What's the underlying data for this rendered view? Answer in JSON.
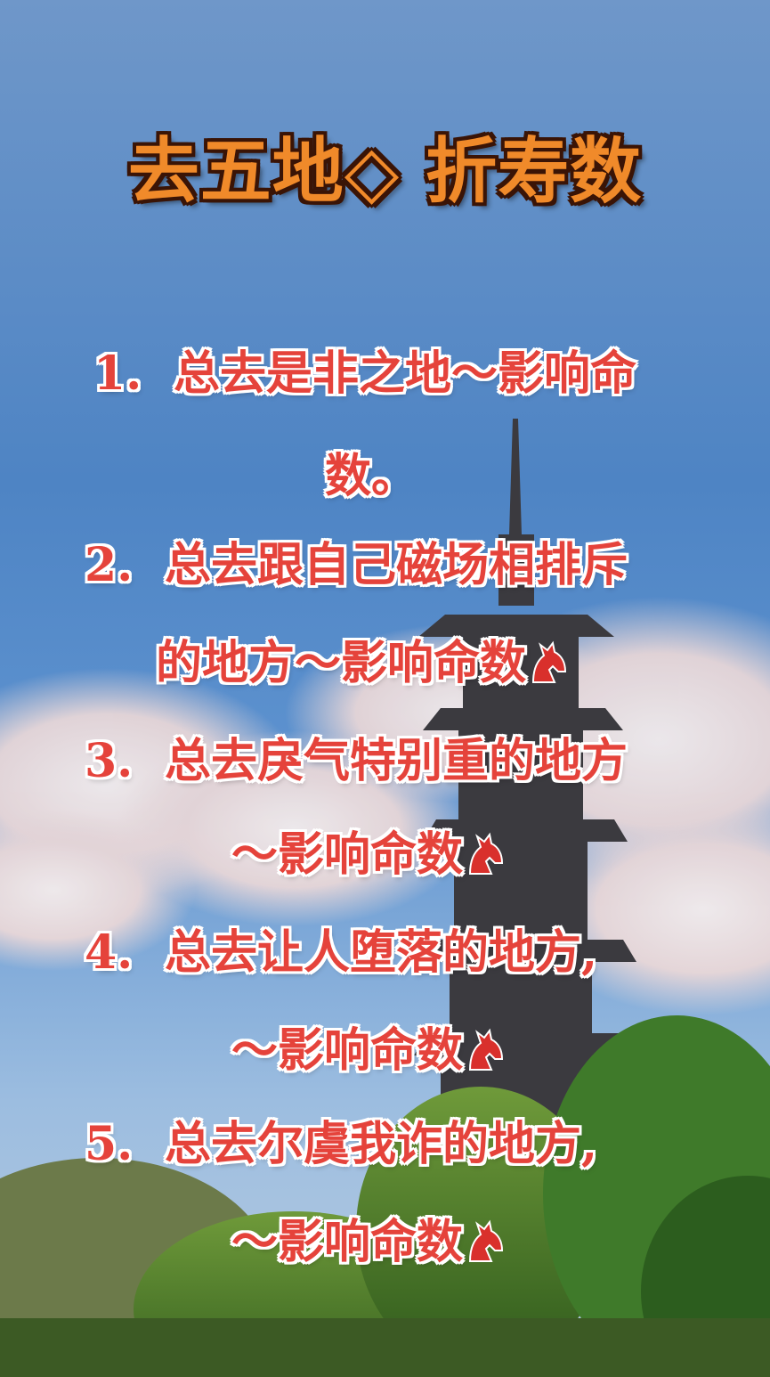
{
  "title": "去五地◇ 折寿数",
  "items": [
    {
      "number": "1.",
      "line1": "总去是非之地～影响命",
      "line2": "数。"
    },
    {
      "number": "2.",
      "line1": "总去跟自己磁场相排斥",
      "line2": "的地方～影响命数"
    },
    {
      "number": "3.",
      "line1": "总去戾气特别重的地方",
      "line2": "～影响命数"
    },
    {
      "number": "4.",
      "line1": "总去让人堕落的地方,",
      "line2": "～影响命数"
    },
    {
      "number": "5.",
      "line1": "总去尔虞我诈的地方,",
      "line2": "～影响命数"
    }
  ],
  "icons": {
    "end_mark": "horse-head-icon"
  },
  "colors": {
    "title": "#f08a2a",
    "item_text": "#e5433b",
    "sky": "#4e84c4"
  }
}
